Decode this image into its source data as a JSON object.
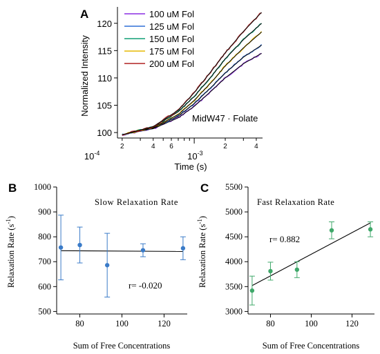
{
  "chart_data": [
    {
      "panel": "A",
      "type": "line",
      "xscale": "log",
      "xlabel": "Time (s)",
      "ylabel": "Normalized Intensity",
      "xlim": [
        0.00018,
        0.0046
      ],
      "ylim": [
        99,
        123
      ],
      "yticks": [
        100,
        105,
        110,
        115,
        120
      ],
      "ytick_labels": [
        "100",
        "105",
        "110",
        "115",
        "120"
      ],
      "xtick_labels": [
        {
          "v": 0.0002,
          "t": "2"
        },
        {
          "v": 0.0004,
          "t": "4"
        },
        {
          "v": 0.0006,
          "t": "6"
        },
        {
          "v": 0.002,
          "t": "2"
        },
        {
          "v": 0.004,
          "t": "4"
        }
      ],
      "xmajor": [
        {
          "v": 0.0001,
          "t": "10",
          "e": "-4"
        },
        {
          "v": 0.001,
          "t": "10",
          "e": "-3"
        }
      ],
      "annotation": "MidW47 · Folate",
      "legend_position": "top-left",
      "series": [
        {
          "name": "100 uM Fol",
          "color": "#8a2be2",
          "x": [
            0.0002,
            0.0004,
            0.0007,
            0.001,
            0.0015,
            0.002,
            0.003,
            0.0045
          ],
          "values": [
            99.6,
            100.7,
            102.7,
            104.8,
            107.8,
            110.0,
            112.6,
            114.5
          ]
        },
        {
          "name": "125 uM Fol",
          "color": "#2f6fd6",
          "x": [
            0.0002,
            0.0004,
            0.0007,
            0.001,
            0.0015,
            0.002,
            0.003,
            0.0045
          ],
          "values": [
            99.6,
            100.8,
            103.0,
            105.3,
            108.5,
            110.9,
            113.8,
            116.0
          ]
        },
        {
          "name": "150 uM Fol",
          "color": "#0f9d75",
          "x": [
            0.0002,
            0.0004,
            0.0007,
            0.001,
            0.0015,
            0.002,
            0.003,
            0.0045
          ],
          "values": [
            99.6,
            101.0,
            103.8,
            106.6,
            110.5,
            113.5,
            117.0,
            120.0
          ]
        },
        {
          "name": "175 uM Fol",
          "color": "#e6b800",
          "x": [
            0.0002,
            0.0004,
            0.0007,
            0.001,
            0.0015,
            0.002,
            0.003,
            0.0045
          ],
          "values": [
            99.6,
            100.9,
            103.3,
            105.9,
            109.4,
            112.2,
            115.5,
            118.4
          ]
        },
        {
          "name": "200 uM Fol",
          "color": "#b02020",
          "x": [
            0.0002,
            0.0004,
            0.0007,
            0.001,
            0.0015,
            0.002,
            0.003,
            0.0045
          ],
          "values": [
            99.6,
            101.1,
            104.1,
            107.3,
            111.5,
            114.6,
            118.5,
            122.0
          ]
        }
      ]
    },
    {
      "panel": "B",
      "type": "scatter",
      "title": "Slow Relaxation Rate",
      "xlabel": "Sum of Free Concentrations",
      "ylabel": "Relaxation Rate (s",
      "ylabel_sup": "-1",
      "ylabel_close": ")",
      "xlim": [
        69,
        131
      ],
      "ylim": [
        490,
        1000
      ],
      "xticks": [
        80,
        100,
        120
      ],
      "yticks": [
        500,
        600,
        700,
        800,
        900,
        1000
      ],
      "annotation": "r= -0.020",
      "color": "#3a7bc8",
      "points": [
        {
          "x": 71,
          "y": 757,
          "err": 130
        },
        {
          "x": 80,
          "y": 767,
          "err": 72
        },
        {
          "x": 93,
          "y": 686,
          "err": 128
        },
        {
          "x": 110,
          "y": 746,
          "err": 26
        },
        {
          "x": 129,
          "y": 754,
          "err": 46
        }
      ],
      "fit": {
        "x": [
          71,
          129
        ],
        "y": [
          744,
          741
        ]
      }
    },
    {
      "panel": "C",
      "type": "scatter",
      "title": "Fast Relaxation Rate",
      "xlabel": "Sum of Free Concentrations",
      "ylabel": "Relaxation Rate (s",
      "ylabel_sup": "-1",
      "ylabel_close": ")",
      "xlim": [
        69,
        131
      ],
      "ylim": [
        2950,
        5500
      ],
      "xticks": [
        80,
        100,
        120
      ],
      "yticks": [
        3000,
        3500,
        4000,
        4500,
        5000,
        5500
      ],
      "annotation": "r= 0.882",
      "color": "#3fa86a",
      "points": [
        {
          "x": 71,
          "y": 3420,
          "err": 290
        },
        {
          "x": 80,
          "y": 3810,
          "err": 180
        },
        {
          "x": 93,
          "y": 3840,
          "err": 160
        },
        {
          "x": 110,
          "y": 4630,
          "err": 170
        },
        {
          "x": 129,
          "y": 4650,
          "err": 150
        }
      ],
      "fit": {
        "x": [
          71,
          129
        ],
        "y": [
          3520,
          4780
        ]
      }
    }
  ]
}
